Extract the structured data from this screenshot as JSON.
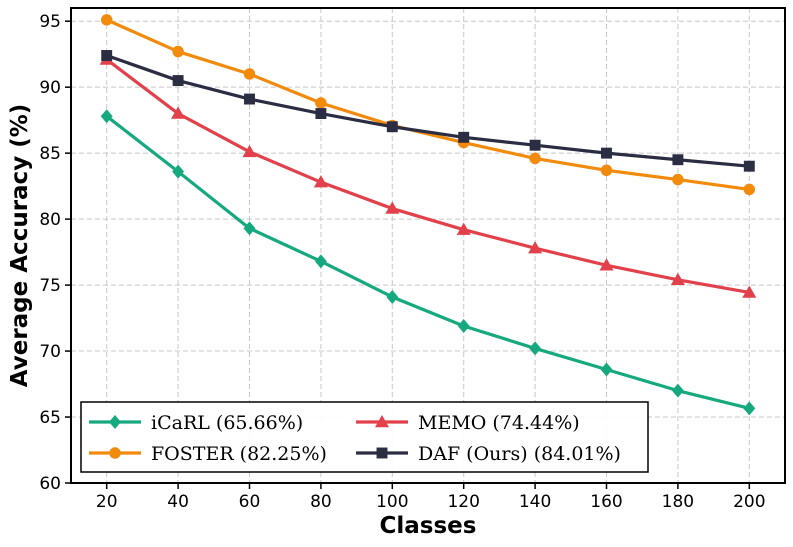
{
  "chart_data": {
    "type": "line",
    "title": "",
    "xlabel": "Classes",
    "ylabel": "Average Accuracy (%)",
    "x": [
      20,
      40,
      60,
      80,
      100,
      120,
      140,
      160,
      180,
      200
    ],
    "xlim": [
      10,
      210
    ],
    "ylim": [
      60,
      96
    ],
    "xticks": [
      20,
      40,
      60,
      80,
      100,
      120,
      140,
      160,
      180,
      200
    ],
    "yticks": [
      60,
      65,
      70,
      75,
      80,
      85,
      90,
      95
    ],
    "grid": true,
    "legend_position": "bottom-left",
    "series": [
      {
        "name": "iCaRL (65.66%)",
        "color": "#16a97f",
        "marker": "diamond",
        "values": [
          87.8,
          83.6,
          79.3,
          76.8,
          74.1,
          71.9,
          70.2,
          68.6,
          67.0,
          65.66
        ]
      },
      {
        "name": "MEMO (74.44%)",
        "color": "#e2404a",
        "marker": "triangle",
        "values": [
          92.1,
          88.0,
          85.1,
          82.8,
          80.8,
          79.2,
          77.8,
          76.5,
          75.4,
          74.44
        ]
      },
      {
        "name": "FOSTER (82.25%)",
        "color": "#f28a0c",
        "marker": "circle",
        "values": [
          95.1,
          92.7,
          91.0,
          88.8,
          87.1,
          85.8,
          84.6,
          83.7,
          83.0,
          82.25
        ]
      },
      {
        "name": "DAF (Ours) (84.01%)",
        "color": "#2b2d42",
        "marker": "square",
        "values": [
          92.4,
          90.5,
          89.1,
          88.0,
          87.0,
          86.2,
          85.6,
          85.0,
          84.5,
          84.01
        ]
      }
    ],
    "legend_order": [
      0,
      2,
      1,
      3
    ]
  }
}
